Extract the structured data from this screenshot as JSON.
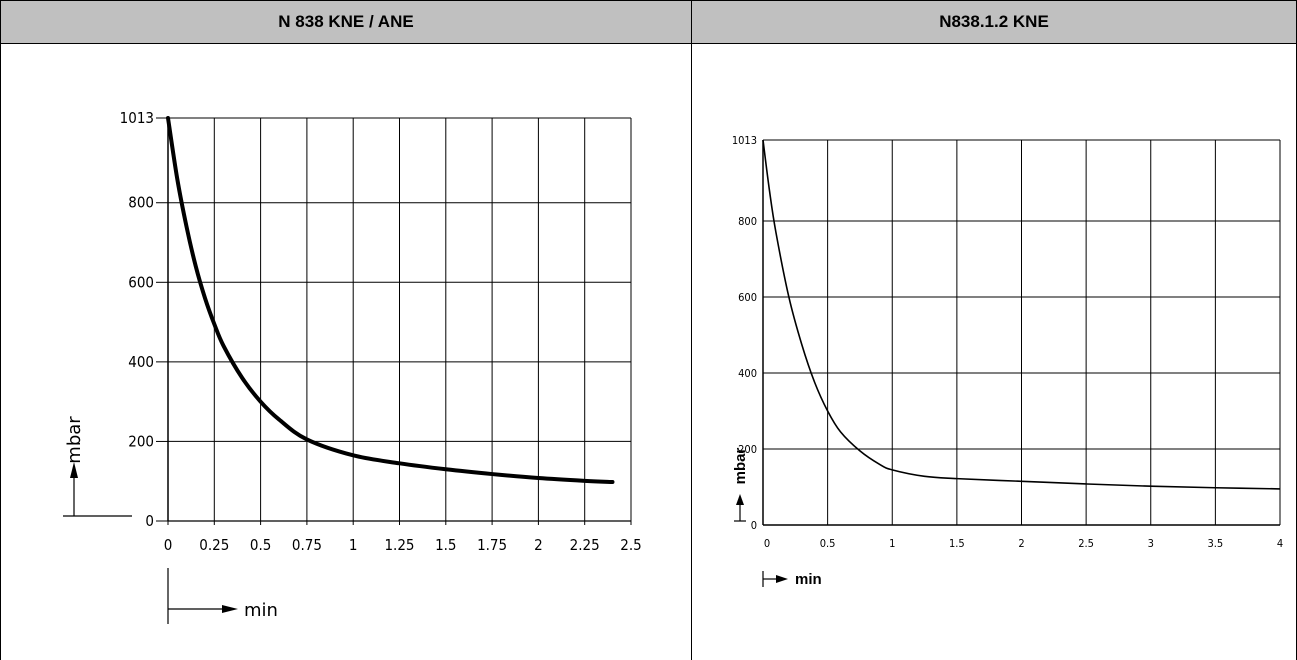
{
  "table": {
    "headers": [
      "N 838 KNE / ANE",
      "N838.1.2 KNE"
    ]
  },
  "chart_data": [
    {
      "type": "line",
      "title": "N 838 KNE / ANE",
      "xlabel": "min",
      "ylabel": "mbar",
      "x_ticks": [
        "0",
        "0.25",
        "0.5",
        "0.75",
        "1",
        "1.25",
        "1.5",
        "1.75",
        "2",
        "2.25",
        "2.5"
      ],
      "y_ticks": [
        "0",
        "200",
        "400",
        "600",
        "800",
        "1013"
      ],
      "xlim": [
        0,
        2.5
      ],
      "ylim": [
        0,
        1013
      ],
      "grid": true,
      "series": [
        {
          "x": [
            0,
            0.05,
            0.1,
            0.15,
            0.2,
            0.25,
            0.3,
            0.4,
            0.5,
            0.6,
            0.75,
            1.0,
            1.25,
            1.5,
            1.75,
            2.0,
            2.25,
            2.4
          ],
          "y": [
            1013,
            860,
            740,
            640,
            560,
            495,
            440,
            360,
            300,
            255,
            205,
            165,
            145,
            130,
            118,
            108,
            101,
            98
          ]
        }
      ]
    },
    {
      "type": "line",
      "title": "N838.1.2 KNE",
      "xlabel": "min",
      "ylabel": "mbar",
      "x_ticks": [
        "0",
        "0.5",
        "1",
        "1.5",
        "2",
        "2.5",
        "3",
        "3.5",
        "4"
      ],
      "y_ticks": [
        "0",
        "200",
        "400",
        "600",
        "800",
        "1013"
      ],
      "xlim": [
        0,
        4
      ],
      "ylim": [
        0,
        1013
      ],
      "grid": true,
      "series": [
        {
          "x": [
            0,
            0.05,
            0.1,
            0.2,
            0.3,
            0.4,
            0.5,
            0.6,
            0.75,
            0.9,
            1.0,
            1.25,
            1.5,
            2.0,
            2.5,
            3.0,
            3.5,
            4.0
          ],
          "y": [
            1013,
            880,
            770,
            600,
            475,
            375,
            300,
            245,
            195,
            160,
            145,
            128,
            122,
            115,
            108,
            102,
            98,
            95
          ]
        }
      ]
    }
  ]
}
